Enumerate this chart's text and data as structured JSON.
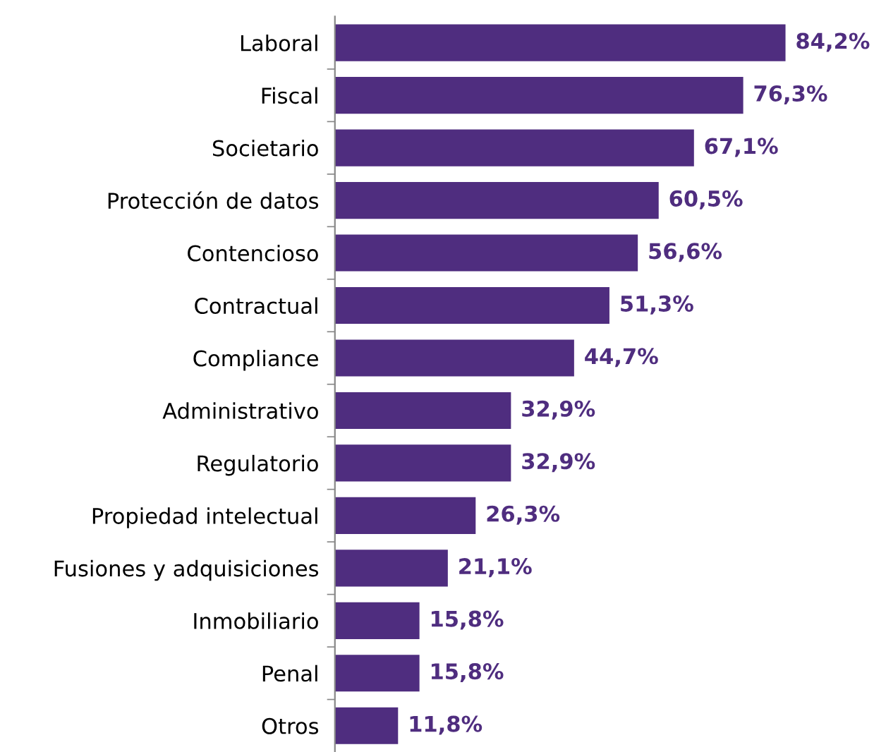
{
  "chart_data": {
    "type": "bar",
    "orientation": "horizontal",
    "categories": [
      "Laboral",
      "Fiscal",
      "Societario",
      "Protección de datos",
      "Contencioso",
      "Contractual",
      "Compliance",
      "Administrativo",
      "Regulatorio",
      "Propiedad intelectual",
      "Fusiones y adquisiciones",
      "Inmobiliario",
      "Penal",
      "Otros"
    ],
    "values": [
      84.2,
      76.3,
      67.1,
      60.5,
      56.6,
      51.3,
      44.7,
      32.9,
      32.9,
      26.3,
      21.1,
      15.8,
      15.8,
      11.8
    ],
    "value_labels": [
      "84,2%",
      "76,3%",
      "67,1%",
      "60,5%",
      "56,6%",
      "51,3%",
      "44,7%",
      "32,9%",
      "32,9%",
      "26,3%",
      "21,1%",
      "15,8%",
      "15,8%",
      "11,8%"
    ],
    "color": "#4f2d7f",
    "grid": false,
    "legend": false
  }
}
